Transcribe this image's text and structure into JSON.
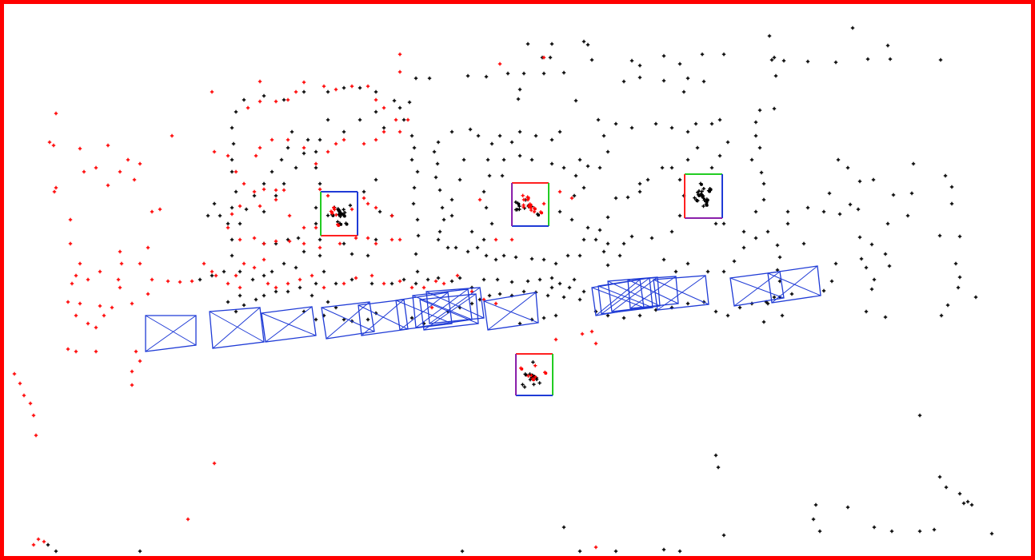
{
  "colors": {
    "background": "#ffffff",
    "frame": "#ff0000",
    "obstacle_points": "#000000",
    "dynamic_points": "#ff0000",
    "vehicle_boxes": "#1f3bd6",
    "landmark_edge_blue": "#1f3bd6",
    "landmark_edge_red": "#ff2020",
    "landmark_edge_green": "#22cc22",
    "landmark_edge_purple": "#8a1faa"
  },
  "legend": [],
  "markers": {
    "point_glyph": "plus",
    "box_glyph": "rectangle-with-diagonals"
  }
}
